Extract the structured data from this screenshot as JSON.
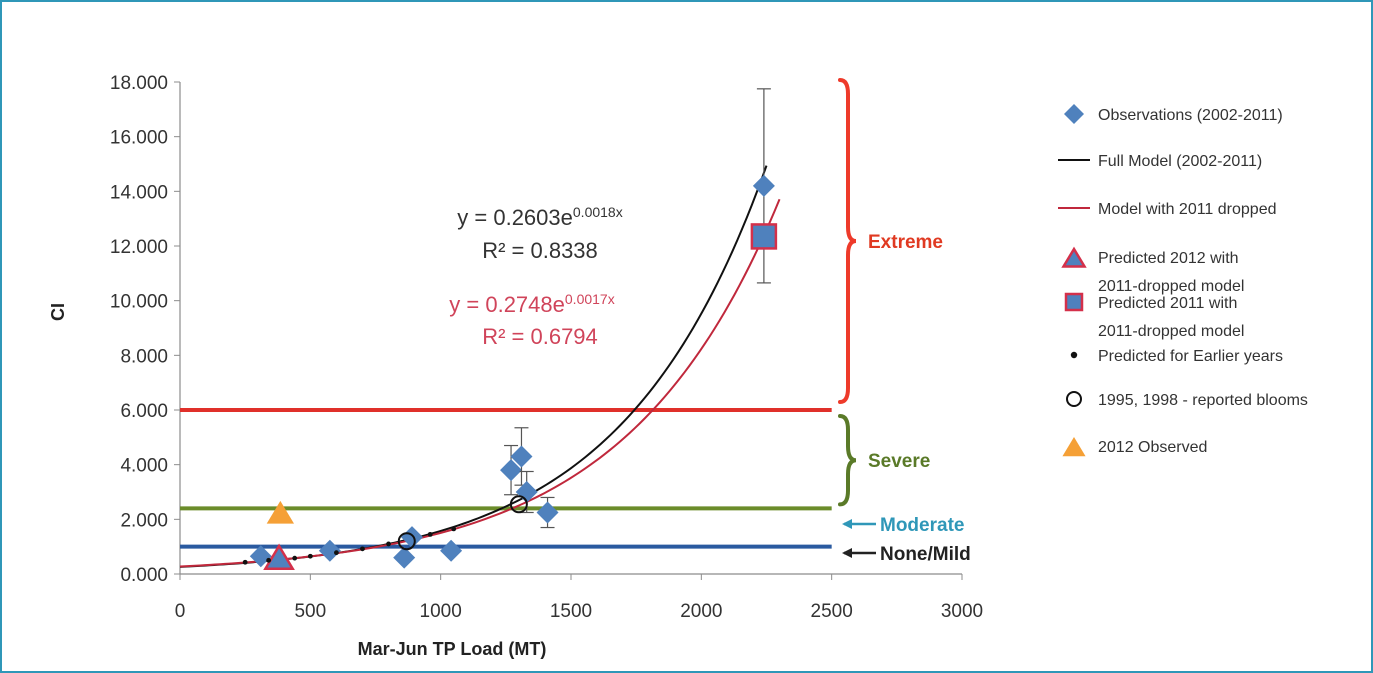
{
  "chart_data": {
    "type": "scatter",
    "xlabel": "Mar-Jun TP Load (MT)",
    "ylabel": "CI",
    "xlim": [
      0,
      3000
    ],
    "ylim": [
      0,
      18
    ],
    "x_ticks": [
      "0",
      "500",
      "1000",
      "1500",
      "2000",
      "2500",
      "3000"
    ],
    "y_ticks": [
      "0.000",
      "2.000",
      "4.000",
      "6.000",
      "8.000",
      "10.000",
      "12.000",
      "14.000",
      "16.000",
      "18.000"
    ],
    "grid": false,
    "legend_position": "right",
    "thresholds": [
      {
        "label": "None/Mild",
        "y": 1.0,
        "color": "#2a5aa0",
        "label_color": "#222222"
      },
      {
        "label": "Moderate",
        "y": 2.4,
        "color": "#6b8c2a",
        "label_color": "#2f97b8"
      },
      {
        "label": "Severe",
        "y": 2.4,
        "color": "#6b8c2a",
        "label_color": "#5a7a28",
        "range": [
          2.4,
          6.0
        ]
      },
      {
        "label": "Extreme",
        "y": 6.0,
        "color": "#e0302a",
        "label_color": "#e03a22",
        "range": [
          6.0,
          18.0
        ]
      }
    ],
    "series": [
      {
        "name": "Observations (2002-2011)",
        "marker": "diamond",
        "color": "#4f81bd",
        "points": [
          {
            "x": 310,
            "y": 0.65
          },
          {
            "x": 575,
            "y": 0.85
          },
          {
            "x": 860,
            "y": 0.6
          },
          {
            "x": 890,
            "y": 1.35
          },
          {
            "x": 1040,
            "y": 0.85
          },
          {
            "x": 1270,
            "y": 3.8,
            "err": 0.9
          },
          {
            "x": 1310,
            "y": 4.3,
            "err": 1.05
          },
          {
            "x": 1330,
            "y": 3.0,
            "err": 0.75
          },
          {
            "x": 1410,
            "y": 2.25,
            "err": 0.55
          },
          {
            "x": 2240,
            "y": 14.2,
            "err": 3.55
          }
        ]
      },
      {
        "name": "Full Model (2002-2011)",
        "marker": "line",
        "color": "#111111",
        "model": {
          "a": 0.2603,
          "b": 0.0018,
          "x_range": [
            0,
            2250
          ]
        }
      },
      {
        "name": "Model with 2011 dropped",
        "marker": "line",
        "color": "#c0283c",
        "model": {
          "a": 0.2748,
          "b": 0.0017,
          "x_range": [
            0,
            2300
          ]
        }
      },
      {
        "name": "Predicted 2012 with 2011-dropped model",
        "marker": "triangle",
        "color": "#4f81bd",
        "stroke": "#d4304a",
        "points": [
          {
            "x": 380,
            "y": 0.55
          }
        ]
      },
      {
        "name": "Predicted 2011 with 2011-dropped model",
        "marker": "square",
        "color": "#4f81bd",
        "stroke": "#d4304a",
        "points": [
          {
            "x": 2240,
            "y": 12.35
          }
        ]
      },
      {
        "name": "Predicted for Earlier years",
        "marker": "dot",
        "color": "#111111",
        "points": [
          {
            "x": 250,
            "y": 0.43
          },
          {
            "x": 340,
            "y": 0.5
          },
          {
            "x": 440,
            "y": 0.58
          },
          {
            "x": 500,
            "y": 0.65
          },
          {
            "x": 600,
            "y": 0.78
          },
          {
            "x": 700,
            "y": 0.92
          },
          {
            "x": 800,
            "y": 1.1
          },
          {
            "x": 960,
            "y": 1.45
          },
          {
            "x": 1050,
            "y": 1.65
          }
        ]
      },
      {
        "name": "1995, 1998 - reported blooms",
        "marker": "circle",
        "color": "#111111",
        "points": [
          {
            "x": 870,
            "y": 1.2
          },
          {
            "x": 1300,
            "y": 2.55
          }
        ]
      },
      {
        "name": "2012 Observed",
        "marker": "triangle",
        "color": "#f5a036",
        "points": [
          {
            "x": 385,
            "y": 2.2
          }
        ]
      }
    ]
  },
  "equations": {
    "full": {
      "base": "y = 0.2603e",
      "exp": "0.0018x",
      "r2_label": "R² = 0.8338",
      "color": "#333333"
    },
    "dropped": {
      "base": "y = 0.2748e",
      "exp": "0.0017x",
      "r2_label": "R² = 0.6794",
      "color": "#d0445a"
    }
  },
  "legend": {
    "items": [
      {
        "lines": [
          "Observations (2002-2011)"
        ],
        "icon": "diamond"
      },
      {
        "lines": [
          "Full Model (2002-2011)"
        ],
        "icon": "black-line"
      },
      {
        "lines": [
          "Model with 2011 dropped"
        ],
        "icon": "red-line"
      },
      {
        "lines": [
          "Predicted 2012 with",
          "2011-dropped model"
        ],
        "icon": "triangle"
      },
      {
        "lines": [
          "Predicted 2011 with",
          "2011-dropped model"
        ],
        "icon": "square"
      },
      {
        "lines": [
          "Predicted for Earlier years"
        ],
        "icon": "dot"
      },
      {
        "lines": [
          "1995, 1998 - reported blooms"
        ],
        "icon": "circle"
      },
      {
        "lines": [
          "2012 Observed"
        ],
        "icon": "orange-triangle"
      }
    ]
  }
}
